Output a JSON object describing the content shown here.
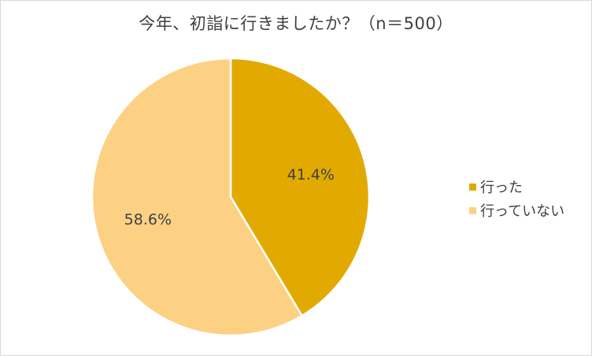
{
  "chart_data": {
    "type": "pie",
    "title": "今年、初詣に行きましたか？（n＝500）",
    "slices": [
      {
        "label": "行った",
        "value": 41.4,
        "display": "41.4%",
        "color": "#e2aa00"
      },
      {
        "label": "行っていない",
        "value": 58.6,
        "display": "58.6%",
        "color": "#fdd184"
      }
    ],
    "legend_position": "right"
  }
}
